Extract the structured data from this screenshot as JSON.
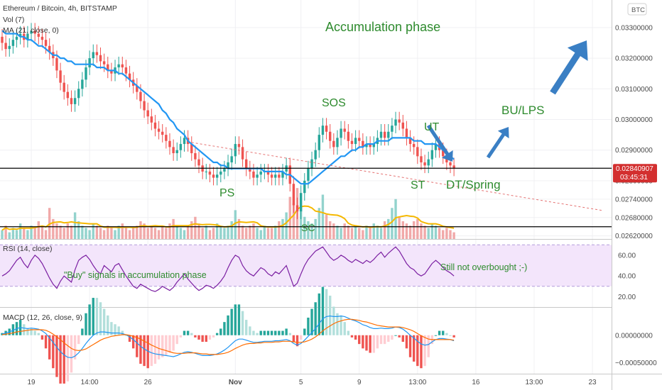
{
  "header": {
    "symbol": "Ethereum / Bitcoin, 4h, BITSTAMP",
    "vol": "Vol (7)",
    "ma": "MA (21, close, 0)",
    "currency": "BTC"
  },
  "chart_data": {
    "type": "candlestick",
    "price_axis": {
      "ylim": [
        0.0261,
        0.0339
      ],
      "ticks": [
        0.0262,
        0.0268,
        0.0274,
        0.028,
        0.029,
        0.03,
        0.031,
        0.032,
        0.033
      ],
      "tick_labels": [
        "0.02620000",
        "0.02680000",
        "0.02740000",
        "0.02800000",
        "0.02900000",
        "0.03000000",
        "0.03100000",
        "0.03200000",
        "0.03300000"
      ],
      "current_price": "0.02840907",
      "countdown": "03:45:31"
    },
    "x_axis": {
      "labels": [
        "19",
        "14:00",
        "26",
        "Nov",
        "5",
        "9",
        "13:00",
        "16",
        "13:00",
        "23"
      ],
      "label_bars": [
        8,
        24,
        40,
        64,
        82,
        98,
        114,
        130,
        146,
        162
      ]
    },
    "candles_close": [
      0.0325,
      0.0323,
      0.0324,
      0.0326,
      0.0327,
      0.0328,
      0.0326,
      0.0328,
      0.0329,
      0.0328,
      0.0327,
      0.0326,
      0.0324,
      0.0322,
      0.032,
      0.0316,
      0.0312,
      0.0309,
      0.0307,
      0.0305,
      0.0307,
      0.031,
      0.0313,
      0.0317,
      0.032,
      0.0322,
      0.0321,
      0.0319,
      0.0318,
      0.0316,
      0.0315,
      0.0317,
      0.0318,
      0.0317,
      0.0315,
      0.0313,
      0.0311,
      0.0309,
      0.0306,
      0.0303,
      0.0301,
      0.0299,
      0.0297,
      0.0296,
      0.0295,
      0.0293,
      0.0291,
      0.0289,
      0.029,
      0.0292,
      0.0294,
      0.0292,
      0.0289,
      0.0287,
      0.0285,
      0.0283,
      0.0283,
      0.0282,
      0.0281,
      0.0282,
      0.0283,
      0.0284,
      0.0286,
      0.0288,
      0.0292,
      0.0291,
      0.0287,
      0.0284,
      0.0283,
      0.0281,
      0.0282,
      0.0283,
      0.0283,
      0.0282,
      0.0281,
      0.0282,
      0.0281,
      0.0283,
      0.0285,
      0.0279,
      0.0272,
      0.027,
      0.0276,
      0.028,
      0.0284,
      0.0287,
      0.029,
      0.0295,
      0.0298,
      0.0296,
      0.0293,
      0.0291,
      0.0294,
      0.0297,
      0.0296,
      0.0293,
      0.0292,
      0.0294,
      0.0293,
      0.0291,
      0.0292,
      0.0291,
      0.0292,
      0.0294,
      0.0296,
      0.0294,
      0.0296,
      0.0298,
      0.03,
      0.0299,
      0.0297,
      0.0294,
      0.0292,
      0.0291,
      0.0288,
      0.0286,
      0.0285,
      0.0287,
      0.029,
      0.0292,
      0.029,
      0.0288,
      0.0286,
      0.0285,
      0.0284
    ],
    "ma21": [
      0.0329,
      0.0328,
      0.0328,
      0.0328,
      0.0328,
      0.0327,
      0.0327,
      0.0326,
      0.0326,
      0.0325,
      0.0324,
      0.0324,
      0.0323,
      0.0322,
      0.0321,
      0.0321,
      0.032,
      0.032,
      0.0319,
      0.0319,
      0.0318,
      0.0318,
      0.0318,
      0.0318,
      0.0318,
      0.0318,
      0.0317,
      0.0317,
      0.0317,
      0.0316,
      0.0316,
      0.0316,
      0.0315,
      0.0315,
      0.0314,
      0.0313,
      0.0312,
      0.0311,
      0.031,
      0.0309,
      0.0308,
      0.0307,
      0.0306,
      0.0305,
      0.0303,
      0.0302,
      0.03,
      0.0299,
      0.0297,
      0.0296,
      0.0295,
      0.0293,
      0.0292,
      0.0291,
      0.029,
      0.0289,
      0.0288,
      0.0287,
      0.0286,
      0.0286,
      0.0285,
      0.0285,
      0.0284,
      0.0284,
      0.0284,
      0.0284,
      0.0284,
      0.0284,
      0.0284,
      0.0284,
      0.0284,
      0.0284,
      0.0283,
      0.0283,
      0.0283,
      0.0283,
      0.0283,
      0.0283,
      0.0282,
      0.0282,
      0.0281,
      0.028,
      0.0279,
      0.0279,
      0.0279,
      0.028,
      0.0281,
      0.0282,
      0.0283,
      0.0284,
      0.0285,
      0.0286,
      0.0287,
      0.0288,
      0.0288,
      0.0289,
      0.029,
      0.029,
      0.0291,
      0.0291,
      0.0292,
      0.0292,
      0.0292,
      0.0293,
      0.0293,
      0.0293,
      0.0293,
      0.0294,
      0.0294,
      0.0294,
      0.0294,
      0.0294,
      0.0294,
      0.0293,
      0.0293,
      0.0293,
      0.0292,
      0.0292,
      0.0292,
      0.0292,
      0.0291,
      0.029,
      0.0289,
      0.0288,
      0.0287
    ],
    "volume": [
      0.4,
      0.6,
      0.3,
      0.5,
      0.4,
      0.7,
      0.5,
      0.4,
      0.6,
      0.5,
      0.8,
      0.6,
      0.4,
      1.4,
      0.9,
      0.7,
      0.6,
      0.5,
      0.7,
      0.6,
      1.2,
      0.8,
      0.6,
      0.5,
      0.4,
      0.7,
      0.6,
      0.5,
      0.4,
      0.6,
      0.5,
      0.4,
      0.6,
      0.7,
      0.5,
      0.4,
      0.5,
      0.6,
      0.8,
      0.7,
      0.5,
      0.6,
      0.5,
      0.4,
      0.6,
      0.5,
      0.7,
      0.9,
      0.6,
      0.5,
      0.4,
      0.6,
      0.8,
      1.0,
      0.7,
      0.5,
      0.6,
      0.4,
      0.5,
      0.7,
      0.6,
      0.5,
      0.6,
      0.8,
      1.3,
      0.9,
      0.6,
      0.5,
      0.6,
      0.7,
      0.5,
      0.4,
      0.6,
      0.5,
      0.5,
      0.6,
      0.8,
      0.9,
      1.2,
      1.9,
      1.6,
      2.3,
      1.5,
      1.0,
      0.8,
      0.7,
      0.9,
      1.4,
      2.0,
      1.1,
      0.8,
      0.7,
      0.6,
      0.5,
      0.7,
      0.6,
      0.5,
      0.6,
      0.5,
      0.4,
      0.6,
      0.5,
      0.7,
      0.6,
      0.5,
      0.8,
      0.9,
      1.4,
      1.8,
      1.0,
      0.8,
      0.7,
      0.6,
      0.8,
      0.9,
      0.7,
      0.6,
      0.5,
      0.7,
      0.6,
      0.5,
      0.4,
      0.5,
      0.4,
      0.3
    ],
    "rsi": {
      "label": "RSI (14, close)",
      "ylim": [
        10,
        75
      ],
      "ticks": [
        20,
        40,
        60
      ],
      "tick_labels": [
        "20.00",
        "40.00",
        "60.00"
      ],
      "band": [
        30,
        70
      ],
      "values": [
        40,
        42,
        45,
        50,
        55,
        58,
        52,
        48,
        55,
        60,
        57,
        52,
        45,
        38,
        32,
        28,
        35,
        40,
        37,
        34,
        46,
        55,
        58,
        60,
        56,
        50,
        45,
        42,
        50,
        47,
        44,
        50,
        52,
        46,
        40,
        35,
        30,
        28,
        32,
        30,
        28,
        26,
        25,
        27,
        30,
        28,
        26,
        29,
        34,
        38,
        42,
        37,
        33,
        29,
        26,
        28,
        31,
        30,
        28,
        31,
        35,
        40,
        48,
        55,
        60,
        58,
        50,
        45,
        42,
        40,
        44,
        48,
        46,
        42,
        40,
        44,
        42,
        46,
        50,
        40,
        30,
        33,
        42,
        50,
        56,
        60,
        64,
        66,
        68,
        63,
        58,
        55,
        57,
        60,
        58,
        55,
        53,
        56,
        54,
        52,
        55,
        53,
        56,
        60,
        63,
        58,
        62,
        65,
        68,
        64,
        58,
        52,
        48,
        46,
        42,
        40,
        42,
        47,
        52,
        55,
        52,
        48,
        45,
        43,
        40
      ]
    },
    "macd": {
      "label": "MACD (12, 26, close, 9)",
      "ylim": [
        -0.0007,
        0.0005
      ],
      "ticks": [
        0,
        -0.0005
      ],
      "tick_labels": [
        "0.00000000",
        "−0.00050000"
      ],
      "macd": [
        2e-05,
        4e-05,
        6e-05,
        9e-05,
        0.00012,
        0.00014,
        0.00013,
        0.00012,
        0.00013,
        0.00012,
        0.00011,
        8e-05,
        3e-05,
        -5e-05,
        -0.00013,
        -0.00022,
        -0.0003,
        -0.00036,
        -0.0004,
        -0.00041,
        -0.00038,
        -0.00032,
        -0.00024,
        -0.00015,
        -7e-05,
        0.0,
        4e-05,
        6e-05,
        6e-05,
        5e-05,
        4e-05,
        4e-05,
        4e-05,
        3e-05,
        1e-05,
        -3e-05,
        -8e-05,
        -0.00014,
        -0.0002,
        -0.00025,
        -0.00029,
        -0.00032,
        -0.00034,
        -0.00035,
        -0.00036,
        -0.00037,
        -0.00038,
        -0.00039,
        -0.00037,
        -0.00034,
        -0.00031,
        -0.0003,
        -0.00031,
        -0.00033,
        -0.00035,
        -0.00037,
        -0.00037,
        -0.00037,
        -0.00036,
        -0.00034,
        -0.00031,
        -0.00027,
        -0.00022,
        -0.00016,
        -0.0001,
        -7e-05,
        -7e-05,
        -9e-05,
        -0.00011,
        -0.00013,
        -0.00013,
        -0.00012,
        -0.00011,
        -0.00011,
        -0.00011,
        -0.0001,
        -0.0001,
        -9e-05,
        -8e-05,
        -0.0001,
        -0.00015,
        -0.00018,
        -0.00015,
        -9e-05,
        -2e-05,
        5e-05,
        0.00012,
        0.00021,
        0.0003,
        0.00034,
        0.00035,
        0.00034,
        0.00034,
        0.00035,
        0.00034,
        0.00031,
        0.00028,
        0.00026,
        0.00023,
        0.00019,
        0.00017,
        0.00014,
        0.00012,
        0.00012,
        0.00013,
        0.00012,
        0.00012,
        0.00013,
        0.00015,
        0.00014,
        0.00011,
        6e-05,
        0.0,
        -5e-05,
        -0.00011,
        -0.00016,
        -0.00018,
        -0.00017,
        -0.00012,
        -8e-05,
        -6e-05,
        -6e-05,
        -7e-05,
        -8e-05,
        -0.0001
      ],
      "signal": [
        1e-05,
        2e-05,
        3e-05,
        4e-05,
        6e-05,
        7e-05,
        8e-05,
        9e-05,
        0.0001,
        0.0001,
        0.0001,
        0.0001,
        9e-05,
        6e-05,
        2e-05,
        -3e-05,
        -8e-05,
        -0.00014,
        -0.00019,
        -0.00024,
        -0.00027,
        -0.00028,
        -0.00027,
        -0.00025,
        -0.00021,
        -0.00017,
        -0.00013,
        -9e-05,
        -6e-05,
        -4e-05,
        -2e-05,
        -1e-05,
        0.0,
        1e-05,
        1e-05,
        0.0,
        -2e-05,
        -4e-05,
        -7e-05,
        -0.00011,
        -0.00014,
        -0.00018,
        -0.00021,
        -0.00024,
        -0.00026,
        -0.00028,
        -0.0003,
        -0.00032,
        -0.00033,
        -0.00033,
        -0.00033,
        -0.00032,
        -0.00032,
        -0.00032,
        -0.00033,
        -0.00034,
        -0.00034,
        -0.00035,
        -0.00035,
        -0.00035,
        -0.00034,
        -0.00033,
        -0.00031,
        -0.00028,
        -0.00024,
        -0.00021,
        -0.00018,
        -0.00016,
        -0.00015,
        -0.00015,
        -0.00014,
        -0.00014,
        -0.00013,
        -0.00013,
        -0.00013,
        -0.00012,
        -0.00012,
        -0.00011,
        -0.00011,
        -0.00011,
        -0.00012,
        -0.00013,
        -0.00013,
        -0.00012,
        -0.0001,
        -7e-05,
        -3e-05,
        2e-05,
        8e-05,
        0.00013,
        0.00017,
        0.00021,
        0.00024,
        0.00026,
        0.00028,
        0.00029,
        0.00029,
        0.00028,
        0.00027,
        0.00025,
        0.00024,
        0.00022,
        0.0002,
        0.00018,
        0.00017,
        0.00016,
        0.00015,
        0.00015,
        0.00015,
        0.00015,
        0.00014,
        0.00012,
        0.0001,
        7e-05,
        3e-05,
        -1e-05,
        -4e-05,
        -7e-05,
        -8e-05,
        -8e-05,
        -8e-05,
        -8e-05,
        -8e-05,
        -8e-05,
        -9e-05
      ]
    },
    "annotations": {
      "title": "Accumulation phase",
      "ps": "PS",
      "sc": "SC",
      "sos": "SOS",
      "ut": "UT",
      "st": "ST",
      "dt_spring": "DT/Spring",
      "bu_lps": "BU/LPS",
      "rsi_buy": "\"Buy\" signals in accumulation phase",
      "rsi_note": "Still not overbought ;-)"
    },
    "colors": {
      "up": "#26a69a",
      "down": "#ef5350",
      "ma": "#2196f3",
      "vol_ma": "#f5b800",
      "rsi": "#7b1fa2",
      "rsi_band": "#f3e5fb",
      "macd": "#2196f3",
      "signal": "#ff6d00",
      "arrow": "#3a7fc4",
      "annotation": "#2e8b2e",
      "trend": "#e57373",
      "price_tag": "#d32f2f",
      "level_line": "#000000"
    }
  }
}
